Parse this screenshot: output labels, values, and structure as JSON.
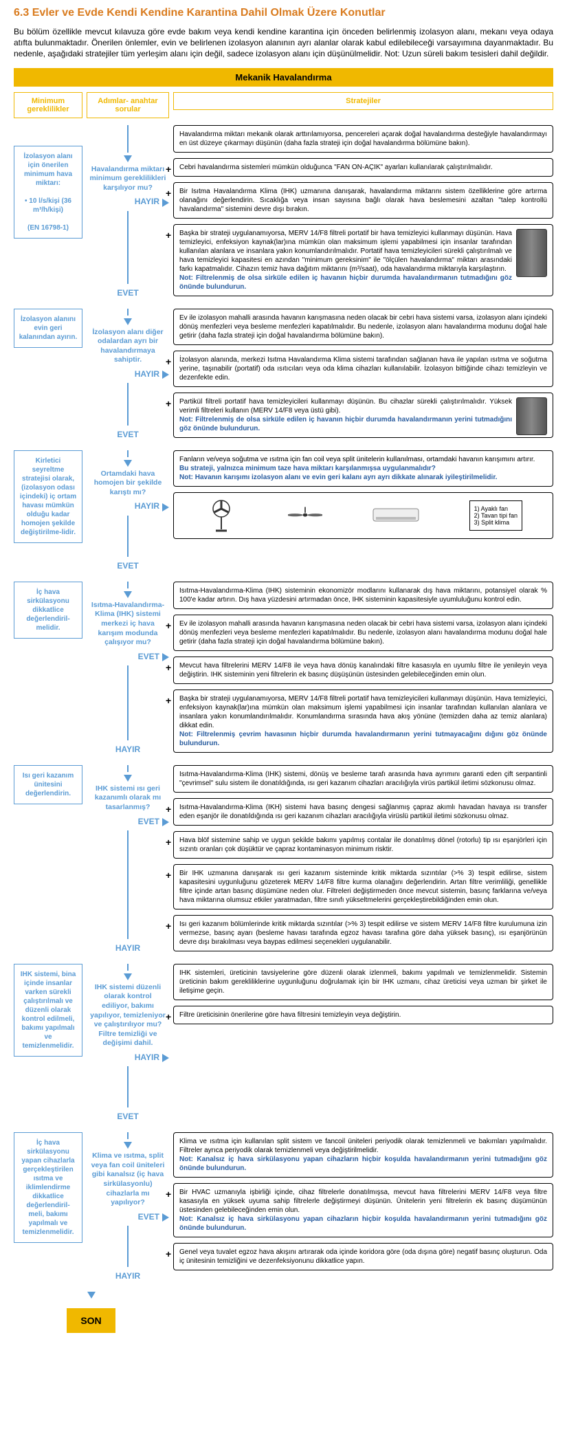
{
  "title": "6.3 Evler ve Evde Kendi Kendine Karantina Dahil Olmak Üzere Konutlar",
  "intro": "Bu bölüm özellikle mevcut kılavuza göre evde bakım veya kendi kendine karantina için önceden belirlenmiş izolasyon alanı, mekanı veya odaya atıfta bulunmaktadır. Önerilen önlemler, evin ve belirlenen izolasyon alanının ayrı alanlar olarak kabul edilebileceği varsayımına dayanmaktadır. Bu nedenle, aşağıdaki stratejiler tüm yerleşim alanı için değil, sadece izolasyon alanı için düşünülmelidir. Not: Uzun süreli bakım tesisleri dahil değildir.",
  "header_bar": "Mekanik Havalandırma",
  "col_heads": {
    "c1": "Minimum gereklilikler",
    "c2": "Adımlar- anahtar sorular",
    "c3": "Stratejiler"
  },
  "answers": {
    "yes": "EVET",
    "no": "HAYIR"
  },
  "end": "SON",
  "sections": [
    {
      "req": "İzolasyon alanı için önerilen minimum hava miktarı:\n\n• 10 l/s/kişi (36 m³/h/kişi)\n\n(EN 16798-1)",
      "q": "Havalandırma miktarı minimum gereklilikleri karşılıyor mu?",
      "strategies": [
        {
          "t": "Havalandırma miktarı mekanik olarak arttırılamıyorsa, pencereleri açarak doğal havalandırma desteğiyle havalandırmayı en üst düzeye çıkarmayı düşünün (daha fazla strateji için doğal havalandırma bölümüne bakın)."
        },
        {
          "t": "Cebri havalandırma sistemleri mümkün olduğunca \"FAN ON-AÇIK\" ayarları kullanılarak çalıştırılmalıdır."
        },
        {
          "t": "Bir Isıtma Havalandırma Klima (IHK) uzmanına danışarak, havalandırma miktarını sistem özelliklerine göre artırma olanağını değerlendirin.\nSıcaklığa veya insan sayısına bağlı olarak hava beslemesini azaltan \"talep kontrollü havalandırma\" sistemini devre dışı bırakın."
        },
        {
          "t": "Başka bir strateji uygulanamıyorsa, MERV 14/F8 filtreli portatif bir hava temizleyici kullanmayı düşünün. Hava temizleyici, enfeksiyon kaynak(lar)ına mümkün olan maksimum işlemi yapabilmesi için insanlar tarafından kullanılan alanlara ve insanlara yakın konumlandırılmalıdır. Portatif hava temizleyicileri sürekli çalıştırılmalı ve hava temizleyici kapasitesi en azından \"minimum gereksinim\" ile \"ölçülen havalandırma\" miktarı arasındaki farkı kapatmalıdır. Cihazın temiz hava dağıtım miktarını (m³/saat), oda havalandırma miktarıyla karşılaştırın.",
          "n": "Not: Filtrelenmiş de olsa sirküle edilen iç havanın hiçbir durumda havalandırmanın tutmadığını göz önünde bulundurun.",
          "dev": true
        }
      ]
    },
    {
      "req": "İzolasyon alanını evin geri kalanından ayırın.",
      "q": "İzolasyon alanı diğer odalardan ayrı bir havalandırmaya sahiptir.",
      "strategies": [
        {
          "t": "Ev ile izolasyon mahalli arasında havanın karışmasına neden olacak bir cebri hava sistemi varsa, izolasyon alanı içindeki dönüş menfezleri veya besleme menfezleri kapatılmalıdır. Bu nedenle, izolasyon alanı havalandırma modunu doğal hale getirir (daha fazla strateji için doğal havalandırma bölümüne bakın)."
        },
        {
          "t": "İzolasyon alanında, merkezi Isıtma Havalandırma Klima sistemi tarafından sağlanan hava ile yapılan ısıtma ve soğutma yerine, taşınabilir (portatif) oda ısıtıcıları veya oda klima cihazları kullanılabilir. İzolasyon bittiğinde cihazı temizleyin ve dezenfekte edin."
        },
        {
          "t": "Partikül filtreli portatif hava temizleyicileri kullanmayı düşünün. Bu cihazlar sürekli çalıştırılmalıdır. Yüksek verimli filtreleri kullanın (MERV 14/F8 veya üstü gibi).",
          "n": "Not: Filtrelenmiş de olsa sirküle edilen iç havanın hiçbir durumda havalandırmanın yerini tutmadığını göz önünde bulundurun.",
          "dev": true
        }
      ]
    },
    {
      "req": "Kirletici seyreltme stratejisi olarak, (izolasyon odası içindeki) iç ortam havası mümkün olduğu kadar homojen şekilde değiştirilme-lidir.",
      "q": "Ortamdaki hava homojen bir şekilde karıştı mı?",
      "strategies": [
        {
          "t": "Fanların ve/veya soğutma ve ısıtma için fan coil veya split ünitelerin kullanılması, ortamdaki havanın karışımını artırır. ",
          "n": "Bu strateji, yalnızca minimum taze hava miktarı karşılanmışsa uygulanmalıdır?\nNot: Havanın karışımı izolasyon alanı ve evin geri kalanı ayrı ayrı dikkate alınarak iyileştirilmelidir."
        }
      ],
      "fans": true
    },
    {
      "req": "İç hava sirkülasyonu dikkatlice değerlendiril-melidir.",
      "q": "Isıtma-Havalandırma-Klima (IHK) sistemi merkezi iç hava karışım modunda çalışıyor mu?",
      "flip": true,
      "strategies": [
        {
          "t": "Isıtma-Havalandırma-Klima (IHK) sisteminin ekonomizör modlarını kullanarak dış hava miktarını, potansiyel olarak % 100'e kadar artırın. Dış hava yüzdesini artırmadan önce, IHK sisteminin kapasitesiyle uyumluluğunu kontrol edin."
        },
        {
          "t": "Ev ile izolasyon mahalli arasında havanın karışmasına neden olacak bir cebri hava sistemi varsa, izolasyon alanı içindeki dönüş menfezleri veya besleme menfezleri kapatılmalıdır. Bu nedenle, izolasyon alanı havalandırma modunu doğal hale getirir (daha fazla strateji için doğal havalandırma bölümüne bakın)."
        },
        {
          "t": "Mevcut hava filtrelerini MERV 14/F8 ile veya hava dönüş kanalındaki filtre kasasıyla en uyumlu filtre ile yenileyin veya değiştirin. IHK sisteminin yeni filtrelerin ek basınç düşüşünün üstesinden gelebileceğinden emin olun."
        },
        {
          "t": "Başka bir strateji uygulanamıyorsa, MERV 14/F8 filtreli portatif hava temizleyicileri kullanmayı düşünün. Hava temizleyici, enfeksiyon kaynak(lar)ına mümkün olan maksimum işlemi yapabilmesi için insanlar tarafından kullanılan alanlara ve insanlara yakın konumlandırılmalıdır. Konumlandırma sırasında hava akış yönüne (temizden daha az temiz alanlara) dikkat edin.",
          "n": "Not: Filtrelenmiş çevrim havasının hiçbir durumda havalandırmanın yerini tutmayacağını dığını göz önünde bulundurun."
        }
      ]
    },
    {
      "req": "Isı geri kazanım ünitesini değerlendirin.",
      "q": "IHK sistemi ısı geri kazanımlı olarak mı tasarlanmış?",
      "flip": true,
      "strategies": [
        {
          "t": "Isıtma-Havalandırma-Klima (IHK) sistemi, dönüş ve besleme tarafı arasında hava ayrımını garanti eden çift serpantinli \"çevrimsel\" sulu sistem ile donatıldığında, ısı geri kazanım cihazları aracılığıyla virüs partikül iletimi sözkonusu olmaz."
        },
        {
          "t": "Isıtma-Havalandırma-Klima (IKH) sistemi hava basınç dengesi sağlanmış çapraz akımlı havadan havaya ısı transfer eden eşanjör ile donatıldığında ısı geri kazanım cihazları aracılığıyla virüslü partikül iletimi sözkonusu olmaz."
        },
        {
          "t": "Hava blöf sistemine sahip ve uygun şekilde bakımı yapılmış contalar ile donatılmış dönel (rotorlu) tip ısı eşanjörleri için sızıntı oranları çok düşüktür ve çapraz kontaminasyon minimum risktir."
        },
        {
          "t": "Bir IHK uzmanına danışarak ısı geri kazanım sisteminde kritik miktarda sızıntılar (>% 3) tespit edilirse, sistem kapasitesini uygunluğunu gözeterek MERV 14/F8 filtre kurma olanağını değerlendirin. Artan filtre verimliliği, genellikle filtre içinde artan basınç düşümüne neden olur. Filtreleri değiştirmeden önce mevcut sistemin, basınç farklarına ve/veya hava miktarına olumsuz etkiler yaratmadan, filtre sınıfı yükseltmelerini gerçekleştirebildiğinden emin olun."
        },
        {
          "t": "Isı geri kazanım bölümlerinde kritik miktarda sızıntılar (>% 3) tespit edilirse ve sistem MERV 14/F8 filtre kurulumuna izin vermezse, basınç ayarı (besleme havası tarafında egzoz havası tarafına göre daha yüksek basınç), ısı eşanjörünün devre dışı bırakılması veya baypas edilmesi seçenekleri uygulanabilir."
        }
      ]
    },
    {
      "req": "IHK sistemi, bina içinde insanlar varken sürekli çalıştırılmalı ve düzenli olarak kontrol edilmeli, bakımı yapılmalı ve temizlenmelidir.",
      "q": "IHK sistemi düzenli olarak kontrol ediliyor, bakımı yapılıyor, temizleniyor ve çalıştırılıyor mu? Filtre temizliği ve değişimi dahil.",
      "strategies": [
        {
          "t": "IHK sistemleri, üreticinin tavsiyelerine göre düzenli olarak izlenmeli, bakımı yapılmalı ve temizlenmelidir. Sistemin üreticinin bakım gerekliliklerine uygunluğunu doğrulamak için bir IHK uzmanı, cihaz üreticisi veya uzman bir şirket ile iletişime geçin."
        },
        {
          "t": "Filtre üreticisinin önerilerine göre hava filtresini temizleyin veya değiştirin."
        }
      ]
    },
    {
      "req": "İç hava sirkülasyonu yapan cihazlarla gerçekleştirilen ısıtma ve iklimlendirme dikkatlice değerlendiril-meli, bakımı yapılmalı ve temizlenmelidir.",
      "q": "Klima ve ısıtma, split veya fan coil üniteleri gibi kanalsız (iç hava sirkülasyonlu) cihazlarla mı yapılıyor?",
      "flip": true,
      "strategies": [
        {
          "t": "Klima ve ısıtma için kullanılan split sistem ve fancoil üniteleri periyodik olarak temizlenmeli ve bakımları yapılmalıdır. Filtreler ayrıca periyodik olarak temizlenmeli veya değiştirilmelidir.",
          "n": "Not: Kanalsız iç hava sirkülasyonu yapan cihazların hiçbir koşulda havalandırmanın yerini tutmadığını göz önünde bulundurun."
        },
        {
          "t": "Bir HVAC uzmanıyla işbirliği içinde, cihaz filtrelerle donatılmışsa, mevcut hava filtrelerini MERV 14/F8 veya filtre kasasıyla en yüksek uyuma sahip filtrelerle değiştirmeyi düşünün. Ünitelerin yeni filtrelerin ek basınç düşümünün üstesinden gelebileceğinden emin olun.",
          "n": "Not: Kanalsız iç hava sirkülasyonu yapan cihazların hiçbir koşulda havalandırmanın yerini tutmadığını göz önünde bulundurun."
        },
        {
          "t": "Genel veya tuvalet egzoz hava akışını artırarak oda içinde koridora göre (oda dışına göre) negatif basınç oluşturun. Oda iç ünitesinin temizliğini ve dezenfeksiyonunu dikkatlice yapın."
        }
      ]
    }
  ],
  "fan_legend": [
    "1)   Ayaklı fan",
    "2)   Tavan tipi fan",
    "3)   Split klima"
  ],
  "colors": {
    "orange": "#d97b1e",
    "yellow": "#f0b800",
    "blue": "#5a9bd4",
    "darkblue": "#2a5d9f"
  }
}
